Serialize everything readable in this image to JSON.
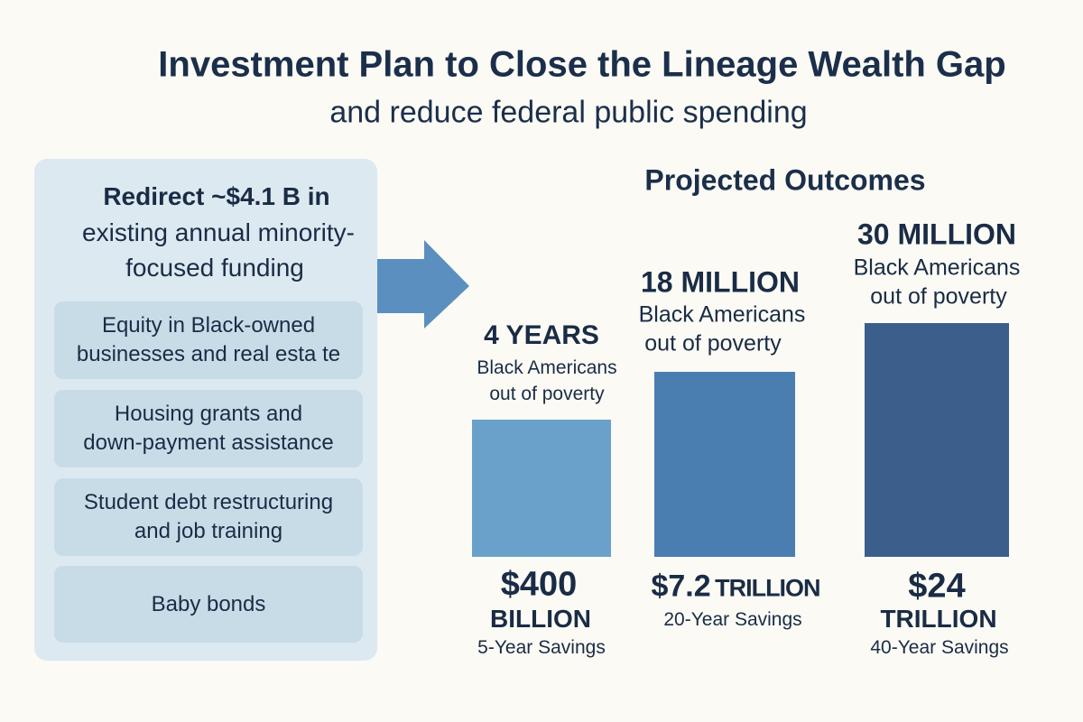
{
  "header": {
    "title": "Investment Plan to Close the Lineage Wealth Gap",
    "subtitle": "and reduce federal public spending"
  },
  "left_panel": {
    "heading_bold": "Redirect ~$4.1 B in",
    "heading_line2": "existing annual minority-",
    "heading_line3": "focused funding",
    "items": [
      {
        "line1": "Equity in Black-owned",
        "line2": "businesses and real esta te"
      },
      {
        "line1": "Housing grants and",
        "line2": "down-payment assistance"
      },
      {
        "line1": "Student debt restructuring",
        "line2": "and job training"
      },
      {
        "line1": "Baby bonds",
        "line2": ""
      }
    ]
  },
  "outcomes": {
    "title": "Projected Outcomes",
    "bars": [
      {
        "headline": "4 YEARS",
        "line1": "Black Americans",
        "line2": "out of poverty",
        "amount": "$400",
        "unit": "BILLION",
        "savings": "5-Year Savings",
        "color": "#6aa1cb"
      },
      {
        "headline": "18 MILLION",
        "line1": "Black Americans",
        "line2": "out of poverty",
        "amount": "$7.2",
        "unit": "TRILLION",
        "savings": "20-Year Savings",
        "color": "#4a7eb0"
      },
      {
        "headline": "30 MILLION",
        "line1": "Black Americans",
        "line2": "out of poverty",
        "amount": "$24",
        "unit": "TRILLION",
        "savings": "40-Year Savings",
        "color": "#3b5f8a"
      }
    ]
  },
  "colors": {
    "arrow": "#5b8fbf",
    "panel": "#dde9f1",
    "item": "#c8dce8",
    "text": "#1b2f4b"
  },
  "icons": {
    "arrow": "arrow-right-icon"
  }
}
